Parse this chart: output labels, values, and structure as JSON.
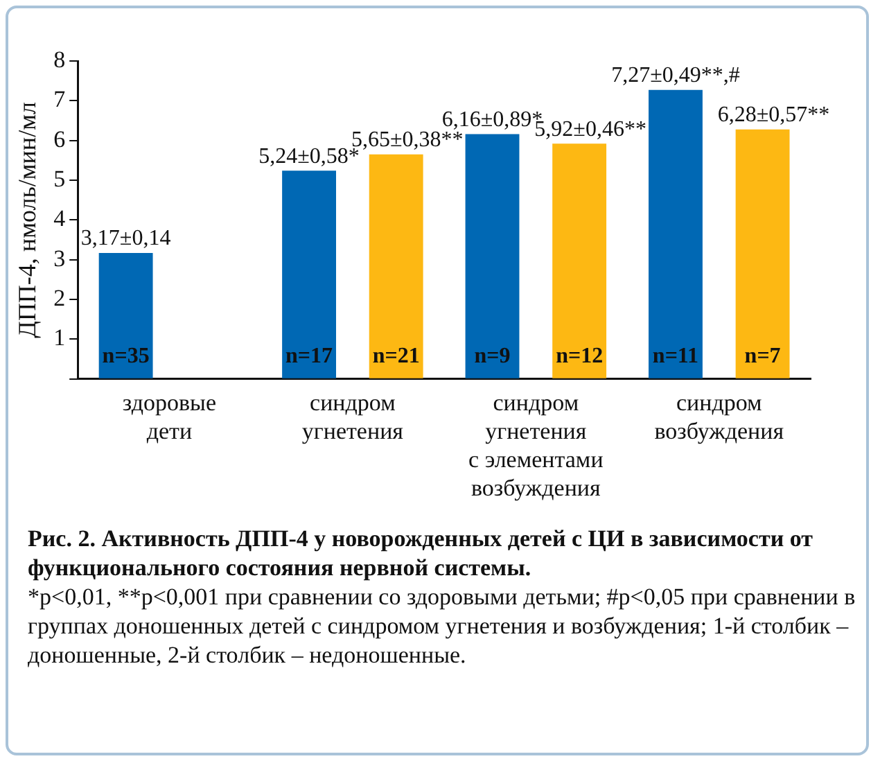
{
  "chart_data": {
    "type": "bar",
    "title": "Рис. 2. Активность ДПП-4 у новорожденных детей с ЦИ в зависимости от функционального состояния нервной системы.",
    "ylabel": "ДПП-4, нмоль/мин/мл",
    "categories": [
      "здоровые\nдети",
      "синдром\nугнетения",
      "синдром\nугнетения\nс элементами\nвозбуждения",
      "синдром\nвозбуждения"
    ],
    "series": [
      {
        "color": "#0068b4",
        "values": [
          3.17,
          5.24,
          6.16,
          7.27
        ],
        "value_labels": [
          "3,17±0,14",
          "5,24±0,58*",
          "6,16±0,89*",
          "7,27±0,49**,#"
        ]
      },
      {
        "color": "#fdb813",
        "values": [
          null,
          5.65,
          5.92,
          6.28
        ],
        "value_labels": [
          null,
          "5,65±0,38**",
          "5,92±0,46**",
          "6,28±0,57**"
        ]
      }
    ],
    "ylim": [
      0,
      8
    ],
    "yticks": [
      {
        "value": 0,
        "label": null
      },
      1,
      2,
      3,
      4,
      5,
      6,
      7,
      8
    ],
    "grid": false,
    "legend": false,
    "annotations": [
      "n=35",
      "n=17",
      "n=21",
      "n=9",
      "n=12",
      "n=11",
      "n=7",
      "*p<0,01, **p<0,001 при сравнении со здоровыми детьми; #p<0,05 при сравнении в группах доношенных детей с синдромом угнетения и возбуждения; 1-й столбик – доношенные, 2-й столбик – недоношенные."
    ]
  }
}
